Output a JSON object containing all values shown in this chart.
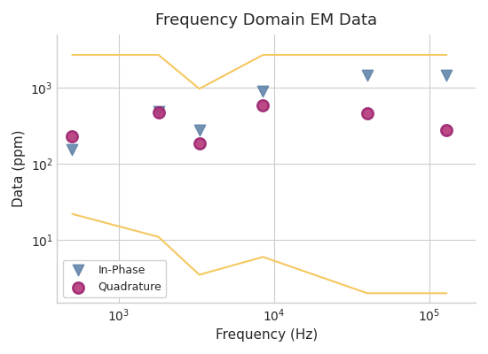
{
  "title": "Frequency Domain EM Data",
  "xlabel": "Frequency (Hz)",
  "ylabel": "Data (ppm)",
  "inphase_freq": [
    500,
    1800,
    3300,
    8500,
    40000,
    130000
  ],
  "inphase_vals": [
    155,
    490,
    280,
    900,
    1450,
    1450
  ],
  "quad_freq": [
    500,
    1800,
    3300,
    8500,
    40000,
    130000
  ],
  "quad_vals": [
    230,
    480,
    185,
    580,
    460,
    275
  ],
  "inphase_color": "#5b7fa6",
  "quad_color": "#9b2671",
  "quad_fill": "#b5367a",
  "line_color": "#f5c860",
  "upper_line_freq": [
    500,
    1800,
    3300,
    8500,
    40000,
    130000
  ],
  "upper_line_vals": [
    2700,
    2700,
    970,
    2700,
    2700,
    2700
  ],
  "lower_line_freq": [
    500,
    1800,
    3300,
    8500,
    40000,
    130000
  ],
  "lower_line_vals": [
    22,
    11,
    3.5,
    6.0,
    2.0,
    2.0
  ],
  "xlim": [
    400,
    200000
  ],
  "ylim": [
    1.5,
    5000
  ],
  "marker_size": 80,
  "line_width": 1.5,
  "title_fontsize": 13,
  "label_fontsize": 11,
  "legend_fontsize": 9,
  "fig_width": 5.5,
  "fig_height": 4.0
}
